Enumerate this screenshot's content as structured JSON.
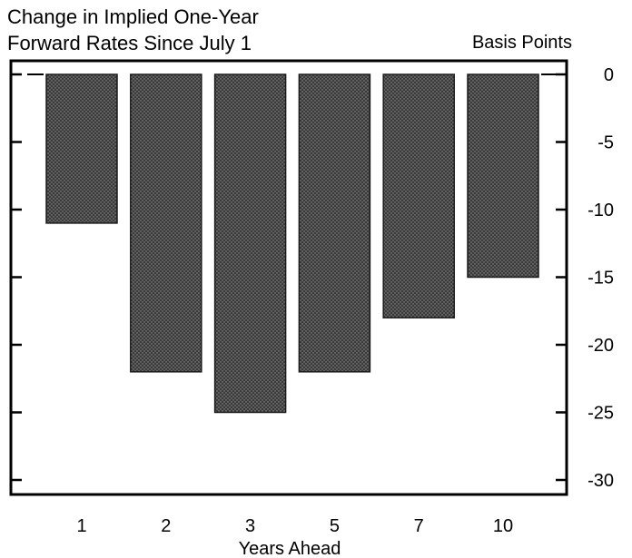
{
  "chart_data": {
    "type": "bar",
    "title": [
      "Change in Implied One-Year",
      "Forward Rates Since July 1"
    ],
    "xlabel": "Years Ahead",
    "ylabel": "Basis Points",
    "categories": [
      "1",
      "2",
      "3",
      "5",
      "7",
      "10"
    ],
    "values": [
      -11,
      -22,
      -25,
      -22,
      -18,
      -15
    ],
    "ylim": [
      -31,
      0
    ],
    "yticks": [
      0,
      -5,
      -10,
      -15,
      -20,
      -25,
      -30
    ],
    "y_axis_side": "right",
    "grid": false,
    "legend": "none",
    "bar_color": "#3a3a3a",
    "bar_dot_color": "#9a9a9a"
  }
}
